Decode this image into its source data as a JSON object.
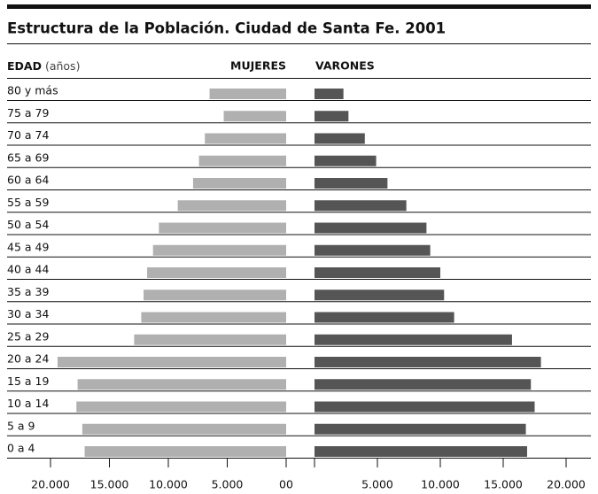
{
  "chart_data": {
    "type": "pyramid",
    "title": "Estructura de la Población. Ciudad de Santa Fe. 2001",
    "category_label": "EDAD",
    "category_unit": "(años)",
    "categories": [
      "80 y más",
      "75 a 79",
      "70 a 74",
      "65 a 69",
      "60 a 64",
      "55 a 59",
      "50 a 54",
      "45 a 49",
      "40 a 44",
      "35 a 39",
      "30 a 34",
      "25 a 29",
      "20 a 24",
      "15 a 19",
      "10 a 14",
      "5 a 9",
      "0 a 4"
    ],
    "series": [
      {
        "name": "MUJERES",
        "color": "#b0b0b0",
        "side": "left",
        "values": [
          6500,
          5300,
          6900,
          7400,
          7900,
          9200,
          10800,
          11300,
          11800,
          12100,
          12300,
          12900,
          19400,
          17700,
          17800,
          17300,
          17100
        ],
        "xlim": [
          0,
          20000
        ],
        "xticks": [
          {
            "value": 20000,
            "label": "20.000"
          },
          {
            "value": 15000,
            "label": "15.000"
          },
          {
            "value": 10000,
            "label": "10.000"
          },
          {
            "value": 5000,
            "label": "5.000"
          },
          {
            "value": 0,
            "label": "00"
          }
        ]
      },
      {
        "name": "VARONES",
        "color": "#555555",
        "side": "right",
        "values": [
          2300,
          2700,
          4000,
          4900,
          5800,
          7300,
          8900,
          9200,
          10000,
          10300,
          11100,
          15700,
          18000,
          17200,
          17500,
          16800,
          16900
        ],
        "xlim": [
          0,
          20000
        ],
        "xticks": [
          {
            "value": 5000,
            "label": "5.000"
          },
          {
            "value": 10000,
            "label": "10.000"
          },
          {
            "value": 15000,
            "label": "15.000"
          },
          {
            "value": 20000,
            "label": "20.000"
          }
        ]
      }
    ]
  }
}
